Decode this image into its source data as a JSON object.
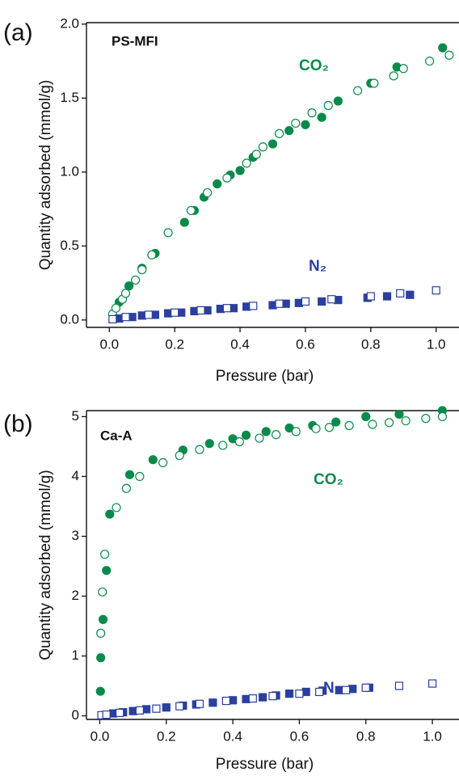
{
  "chart_data": [
    {
      "type": "scatter",
      "panel_label": "(a)",
      "label": "PS-MFI",
      "xlabel": "Pressure (bar)",
      "ylabel": "Quantity adsorbed (mmol/g)",
      "xlim": [
        -0.07,
        1.07
      ],
      "ylim": [
        -0.05,
        2.01
      ],
      "xticks": [
        {
          "value": 0,
          "label": "0.0"
        },
        0.2,
        0.4,
        0.6,
        0.8,
        {
          "value": 1,
          "label": "1.0"
        }
      ],
      "yticks": [
        {
          "value": 0,
          "label": "0.0"
        },
        0.5,
        {
          "value": 1,
          "label": "1.0"
        },
        1.5,
        {
          "value": 2,
          "label": "2.0"
        }
      ],
      "annotations": [
        {
          "text": "CO₂",
          "color": "#0a8a4a"
        },
        {
          "text": "N₂",
          "color": "#2b3f9e"
        }
      ],
      "series": [
        {
          "color": "#0a8a4a",
          "marker": "circle",
          "filled": true,
          "x": [
            0.03,
            0.06,
            0.1,
            0.14,
            0.23,
            0.26,
            0.29,
            0.33,
            0.37,
            0.4,
            0.44,
            0.5,
            0.55,
            0.6,
            0.65,
            0.7,
            0.8,
            0.88,
            1.02
          ],
          "values": [
            0.12,
            0.23,
            0.35,
            0.45,
            0.66,
            0.74,
            0.83,
            0.92,
            0.98,
            1.01,
            1.1,
            1.19,
            1.28,
            1.32,
            1.37,
            1.48,
            1.6,
            1.71,
            1.84
          ]
        },
        {
          "color": "#0a8a4a",
          "marker": "circle",
          "filled": false,
          "x": [
            0.01,
            0.02,
            0.04,
            0.05,
            0.08,
            0.1,
            0.13,
            0.18,
            0.25,
            0.3,
            0.36,
            0.42,
            0.45,
            0.47,
            0.52,
            0.57,
            0.62,
            0.67,
            0.76,
            0.81,
            0.87,
            0.9,
            0.98,
            1.04
          ],
          "values": [
            0.04,
            0.08,
            0.14,
            0.18,
            0.27,
            0.34,
            0.44,
            0.59,
            0.74,
            0.86,
            0.96,
            1.06,
            1.12,
            1.17,
            1.26,
            1.33,
            1.4,
            1.45,
            1.55,
            1.6,
            1.65,
            1.7,
            1.75,
            1.79
          ]
        },
        {
          "color": "#2b3f9e",
          "marker": "square",
          "filled": true,
          "x": [
            0.03,
            0.07,
            0.1,
            0.14,
            0.18,
            0.22,
            0.26,
            0.3,
            0.34,
            0.38,
            0.42,
            0.5,
            0.54,
            0.58,
            0.65,
            0.7,
            0.79,
            0.85,
            0.92
          ],
          "values": [
            0.01,
            0.02,
            0.03,
            0.035,
            0.045,
            0.05,
            0.06,
            0.065,
            0.075,
            0.08,
            0.09,
            0.1,
            0.11,
            0.115,
            0.125,
            0.135,
            0.15,
            0.16,
            0.17
          ]
        },
        {
          "color": "#2b3f9e",
          "marker": "square",
          "filled": false,
          "x": [
            0.01,
            0.05,
            0.12,
            0.2,
            0.28,
            0.36,
            0.44,
            0.52,
            0.6,
            0.68,
            0.8,
            0.89,
            1.0
          ],
          "values": [
            0.005,
            0.02,
            0.035,
            0.05,
            0.065,
            0.08,
            0.095,
            0.11,
            0.125,
            0.14,
            0.16,
            0.18,
            0.2
          ]
        }
      ]
    },
    {
      "type": "scatter",
      "panel_label": "(b)",
      "label": "Ca-A",
      "xlabel": "Pressure (bar)",
      "ylabel": "Quantity adsorbed (mmol/g)",
      "xlim": [
        -0.04,
        1.08
      ],
      "ylim": [
        -0.06,
        5.1
      ],
      "xticks": [
        {
          "value": 0,
          "label": "0.0"
        },
        0.2,
        0.4,
        0.6,
        0.8,
        {
          "value": 1,
          "label": "1.0"
        }
      ],
      "yticks": [
        0,
        1,
        2,
        3,
        4,
        5
      ],
      "annotations": [
        {
          "text": "CO₂",
          "color": "#0a8a4a"
        },
        {
          "text": "N₂",
          "color": "#2b3f9e"
        }
      ],
      "series": [
        {
          "color": "#0a8a4a",
          "marker": "circle",
          "filled": true,
          "x": [
            0.002,
            0.003,
            0.01,
            0.02,
            0.03,
            0.09,
            0.16,
            0.25,
            0.33,
            0.4,
            0.44,
            0.5,
            0.57,
            0.64,
            0.71,
            0.8,
            0.9,
            1.03
          ],
          "values": [
            0.41,
            0.97,
            1.61,
            2.43,
            3.37,
            4.03,
            4.28,
            4.44,
            4.55,
            4.63,
            4.69,
            4.75,
            4.81,
            4.85,
            4.91,
            5.0,
            5.04,
            5.1
          ]
        },
        {
          "color": "#0a8a4a",
          "marker": "circle",
          "filled": false,
          "x": [
            0.003,
            0.008,
            0.015,
            0.05,
            0.08,
            0.12,
            0.19,
            0.24,
            0.3,
            0.37,
            0.42,
            0.48,
            0.53,
            0.59,
            0.65,
            0.69,
            0.75,
            0.82,
            0.87,
            0.92,
            0.98,
            1.03
          ],
          "values": [
            1.38,
            2.07,
            2.7,
            3.48,
            3.8,
            4.0,
            4.23,
            4.35,
            4.45,
            4.52,
            4.58,
            4.64,
            4.7,
            4.75,
            4.8,
            4.82,
            4.85,
            4.87,
            4.9,
            4.93,
            4.97,
            5.0
          ]
        },
        {
          "color": "#2b3f9e",
          "marker": "square",
          "filled": true,
          "x": [
            0.04,
            0.07,
            0.1,
            0.14,
            0.2,
            0.25,
            0.29,
            0.34,
            0.4,
            0.44,
            0.49,
            0.53,
            0.57,
            0.62,
            0.67,
            0.72,
            0.76,
            0.81
          ],
          "values": [
            0.04,
            0.06,
            0.08,
            0.11,
            0.14,
            0.17,
            0.19,
            0.22,
            0.26,
            0.28,
            0.31,
            0.34,
            0.37,
            0.4,
            0.42,
            0.43,
            0.45,
            0.47
          ]
        },
        {
          "color": "#2b3f9e",
          "marker": "square",
          "filled": false,
          "x": [
            0.005,
            0.02,
            0.06,
            0.12,
            0.17,
            0.24,
            0.3,
            0.38,
            0.46,
            0.52,
            0.6,
            0.66,
            0.74,
            0.8,
            0.9,
            1.0
          ],
          "values": [
            0.01,
            0.02,
            0.05,
            0.09,
            0.12,
            0.16,
            0.2,
            0.25,
            0.29,
            0.33,
            0.37,
            0.4,
            0.43,
            0.47,
            0.5,
            0.54
          ]
        }
      ]
    }
  ]
}
